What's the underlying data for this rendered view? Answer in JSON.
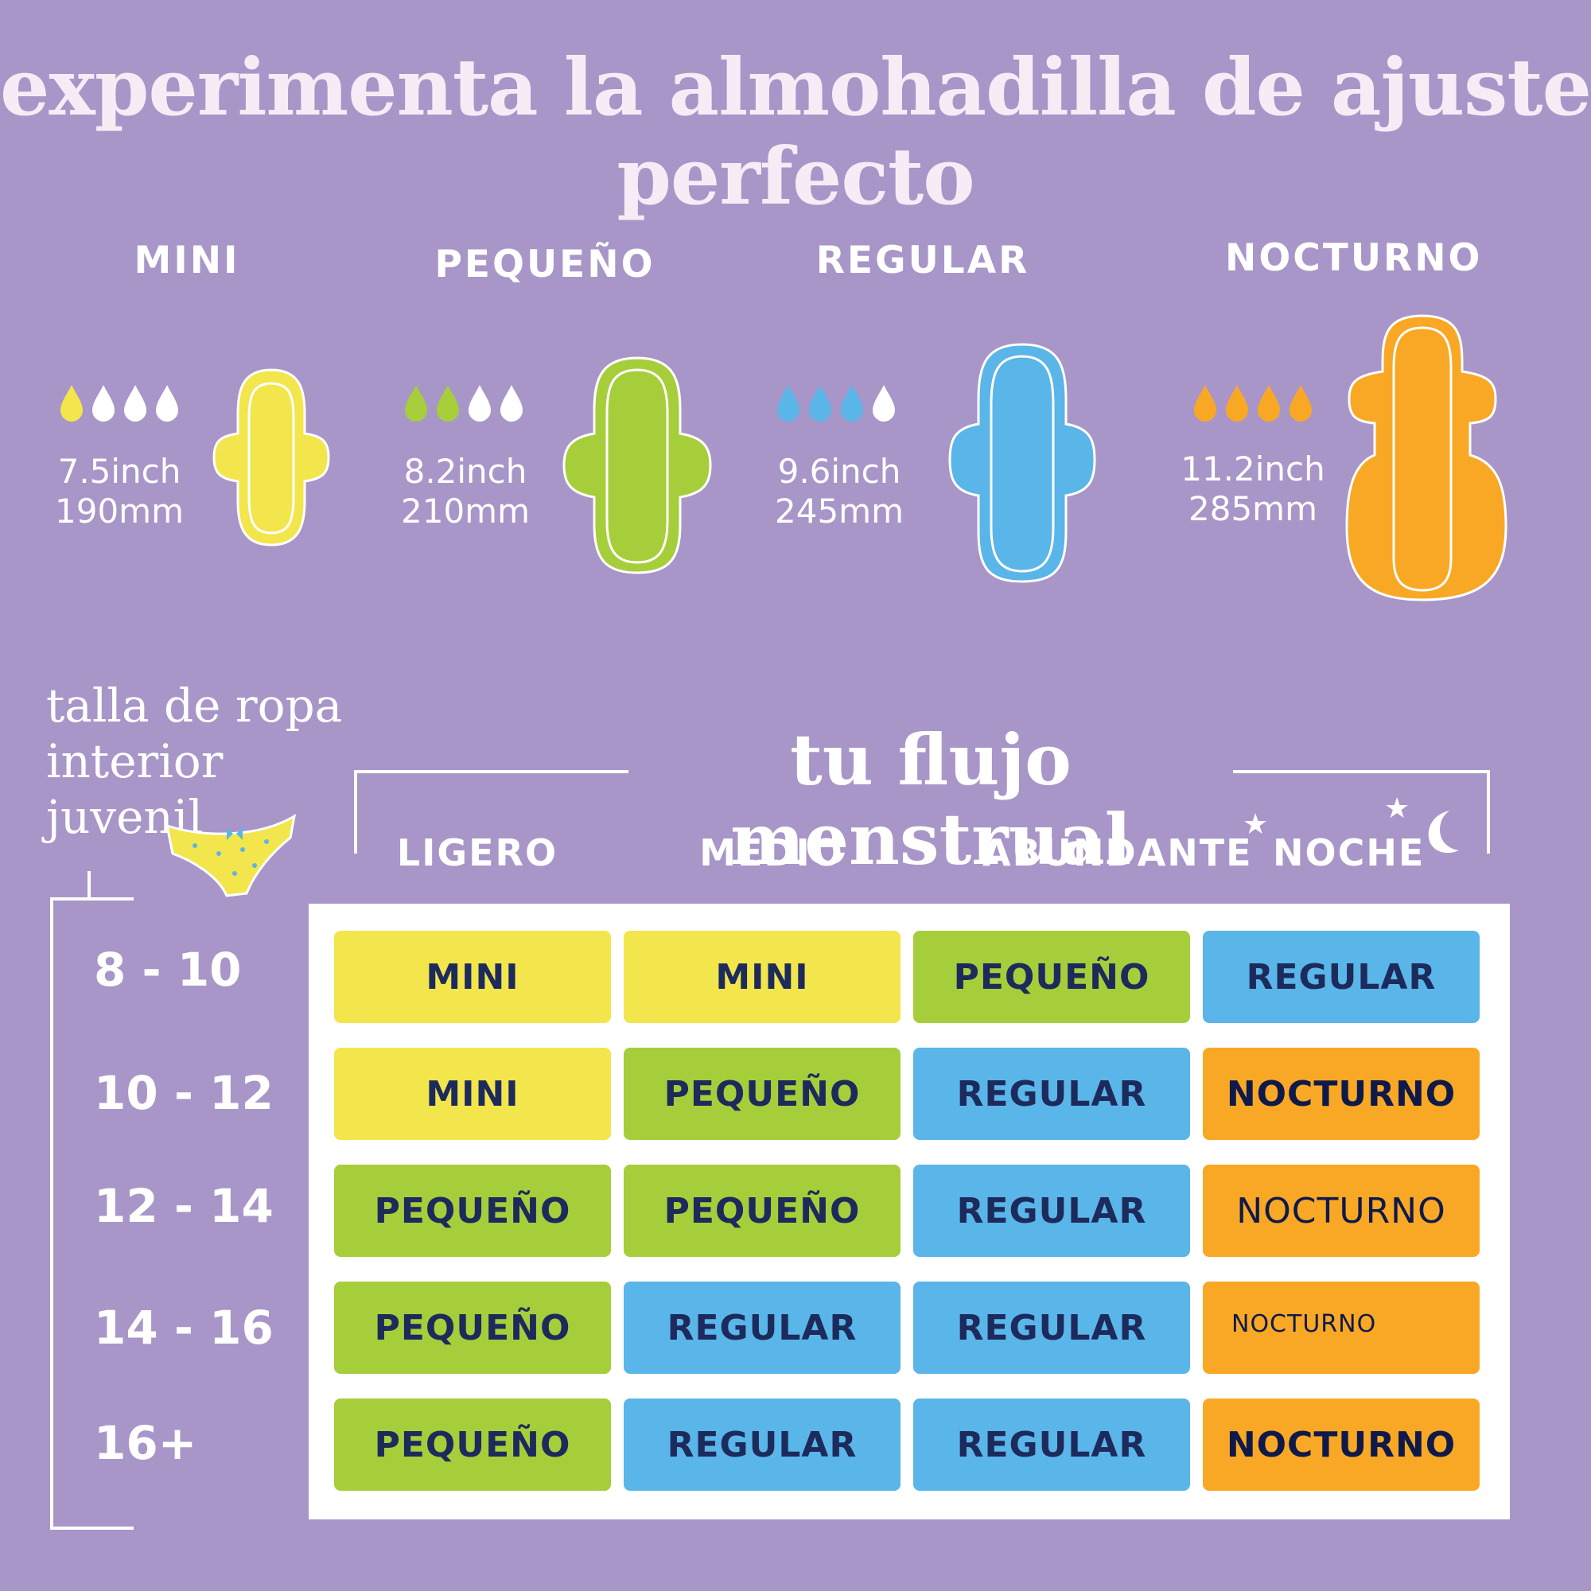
{
  "title": {
    "line1": "experimenta la almohadilla de ajuste",
    "line2": "perfecto"
  },
  "pads": [
    {
      "name": "MINI",
      "inch": "7.5inch",
      "mm": "190mm",
      "color": "#f3e54c",
      "filled_drops": 1
    },
    {
      "name": "PEQUEÑO",
      "inch": "8.2inch",
      "mm": "210mm",
      "color": "#a6ce3a",
      "filled_drops": 2
    },
    {
      "name": "REGULAR",
      "inch": "9.6inch",
      "mm": "245mm",
      "color": "#5ab5e8",
      "filled_drops": 3
    },
    {
      "name": "NOCTURNO",
      "inch": "11.2inch",
      "mm": "285mm",
      "color": "#f9a825",
      "filled_drops": 4
    }
  ],
  "underwear_label": {
    "line1": "talla de ropa",
    "line2": "interior",
    "line3": "juvenil"
  },
  "flow_title": "tu flujo menstrual",
  "columns": [
    "LIGERO",
    "MEDIO",
    "ABUNDANTE",
    "NOCHE"
  ],
  "sizes": [
    "8 - 10",
    "10 - 12",
    "12 - 14",
    "14 - 16",
    "16+"
  ],
  "table": [
    [
      "MINI",
      "MINI",
      "PEQUEÑO",
      "REGULAR"
    ],
    [
      "MINI",
      "PEQUEÑO",
      "REGULAR",
      "NOCTURNO"
    ],
    [
      "PEQUEÑO",
      "PEQUEÑO",
      "REGULAR",
      "NOCTURNO"
    ],
    [
      "PEQUEÑO",
      "REGULAR",
      "REGULAR",
      "NOCTURNO"
    ],
    [
      "PEQUEÑO",
      "REGULAR",
      "REGULAR",
      "NOCTURNO"
    ]
  ],
  "colors": {
    "background": "#a896c8",
    "mini": "#f3e54c",
    "pequeno": "#a6ce3a",
    "regular": "#5ab5e8",
    "nocturno": "#f9a825",
    "text_dark": "#1d2a5c"
  }
}
